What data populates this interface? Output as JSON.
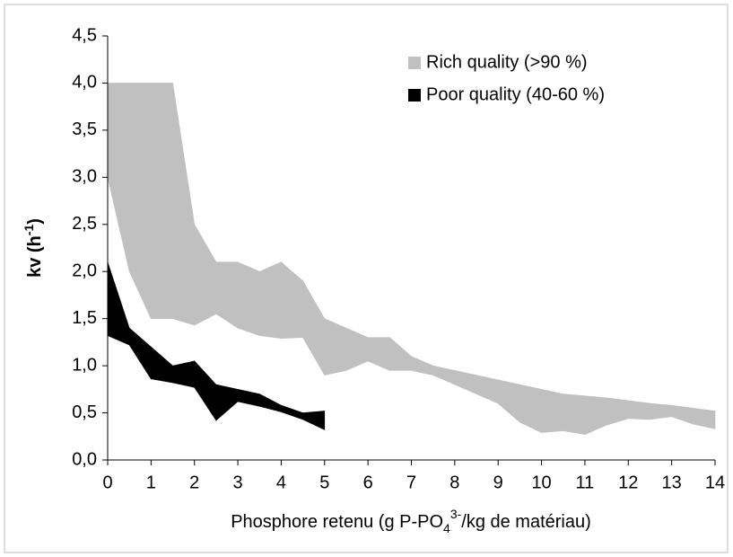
{
  "chart_data": {
    "type": "range-area",
    "x": [
      0,
      0.5,
      1,
      1.5,
      2,
      2.5,
      3,
      3.5,
      4,
      4.5,
      5,
      5.5,
      6,
      6.5,
      7,
      7.5,
      8,
      8.5,
      9,
      9.5,
      10,
      10.5,
      11,
      11.5,
      12,
      12.5,
      13,
      13.5,
      14
    ],
    "series": [
      {
        "name": "Rich quality (>90 %)",
        "color": "#c0c0c0",
        "high": [
          4.0,
          4.0,
          4.0,
          4.0,
          2.5,
          2.1,
          2.1,
          2.0,
          2.1,
          1.9,
          1.5,
          1.4,
          1.3,
          1.3,
          1.1,
          1.0,
          0.95,
          0.9,
          0.85,
          0.8,
          0.75,
          0.7,
          0.68,
          0.66,
          0.63,
          0.6,
          0.58,
          0.55,
          0.52
        ],
        "low": [
          3.0,
          2.0,
          1.5,
          1.5,
          1.43,
          1.55,
          1.4,
          1.32,
          1.29,
          1.3,
          0.9,
          0.95,
          1.05,
          0.95,
          0.95,
          0.9,
          0.8,
          0.7,
          0.6,
          0.4,
          0.29,
          0.31,
          0.27,
          0.37,
          0.44,
          0.43,
          0.46,
          0.38,
          0.33
        ]
      },
      {
        "name": "Poor quality (40-60 %)",
        "color": "#000000",
        "high": [
          2.1,
          1.4,
          1.2,
          1.0,
          1.05,
          0.8,
          0.75,
          0.7,
          0.58,
          0.5,
          0.52,
          null,
          null,
          null,
          null,
          null,
          null,
          null,
          null,
          null,
          null,
          null,
          null,
          null,
          null,
          null,
          null,
          null,
          null
        ],
        "low": [
          1.32,
          1.22,
          0.86,
          0.82,
          0.77,
          0.42,
          0.62,
          0.57,
          0.51,
          0.43,
          0.32,
          null,
          null,
          null,
          null,
          null,
          null,
          null,
          null,
          null,
          null,
          null,
          null,
          null,
          null,
          null,
          null,
          null,
          null
        ]
      }
    ],
    "xlabel": [
      "Phosphore retenu (g P-PO",
      "4",
      "3-",
      "/kg de matériau)"
    ],
    "ylabel": [
      "kv (h",
      "-1",
      ")"
    ],
    "xlim": [
      0,
      14
    ],
    "xticks": [
      0,
      1,
      2,
      3,
      4,
      5,
      6,
      7,
      8,
      9,
      10,
      11,
      12,
      13,
      14
    ],
    "ylim": [
      0,
      4.5
    ],
    "yticks": [
      {
        "value": 0,
        "label": "0,0"
      },
      {
        "value": 0.5,
        "label": "0,5"
      },
      {
        "value": 1,
        "label": "1,0"
      },
      {
        "value": 1.5,
        "label": "1,5"
      },
      {
        "value": 2,
        "label": "2,0"
      },
      {
        "value": 2.5,
        "label": "2,5"
      },
      {
        "value": 3,
        "label": "3,0"
      },
      {
        "value": 3.5,
        "label": "3,5"
      },
      {
        "value": 4,
        "label": "4,0"
      },
      {
        "value": 4.5,
        "label": "4,5"
      }
    ],
    "legend": "top-right"
  }
}
